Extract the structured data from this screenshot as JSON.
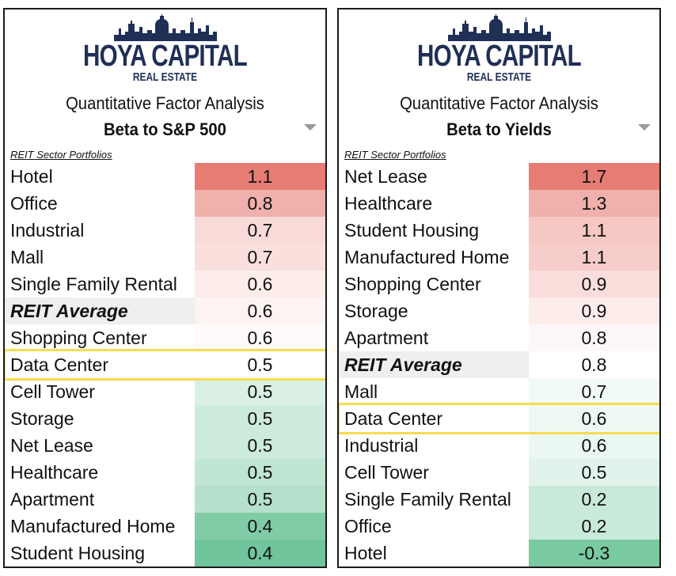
{
  "brand": {
    "name": "HOYA CAPITAL",
    "sub": "REAL ESTATE",
    "color": "#1f2f56",
    "icon": "city-skyline-icon"
  },
  "colors": {
    "high": "#e67c73",
    "mid": "#ffffff",
    "low": "#57bb8a",
    "highlight_border": "#f7dc4e",
    "average_label_bg": "#efefef"
  },
  "chart_data": [
    {
      "type": "table",
      "subtitle": "Quantitative Factor Analysis",
      "title": "Beta to S&P 500",
      "section_label": "REIT Sector Portfolios",
      "highlighted": "Data Center",
      "rows": [
        {
          "label": "Hotel",
          "value": "1.1"
        },
        {
          "label": "Office",
          "value": "0.8"
        },
        {
          "label": "Industrial",
          "value": "0.7"
        },
        {
          "label": "Mall",
          "value": "0.7"
        },
        {
          "label": "Single Family Rental",
          "value": "0.6"
        },
        {
          "label": "REIT Average",
          "value": "0.6",
          "average": true
        },
        {
          "label": "Shopping Center",
          "value": "0.6"
        },
        {
          "label": "Data Center",
          "value": "0.5"
        },
        {
          "label": "Cell Tower",
          "value": "0.5"
        },
        {
          "label": "Storage",
          "value": "0.5"
        },
        {
          "label": "Net Lease",
          "value": "0.5"
        },
        {
          "label": "Healthcare",
          "value": "0.5"
        },
        {
          "label": "Apartment",
          "value": "0.5"
        },
        {
          "label": "Manufactured Home",
          "value": "0.4"
        },
        {
          "label": "Student Housing",
          "value": "0.4"
        }
      ],
      "color_levels": [
        1.0,
        0.6,
        0.28,
        0.24,
        0.14,
        0.09,
        0.04,
        0.0,
        -0.22,
        -0.3,
        -0.3,
        -0.38,
        -0.44,
        -0.75,
        -0.85
      ]
    },
    {
      "type": "table",
      "subtitle": "Quantitative Factor Analysis",
      "title": "Beta to Yields",
      "section_label": "REIT Sector Portfolios",
      "highlighted": "Data Center",
      "rows": [
        {
          "label": "Net Lease",
          "value": "1.7"
        },
        {
          "label": "Healthcare",
          "value": "1.3"
        },
        {
          "label": "Student Housing",
          "value": "1.1"
        },
        {
          "label": "Manufactured Home",
          "value": "1.1"
        },
        {
          "label": "Shopping Center",
          "value": "0.9"
        },
        {
          "label": "Storage",
          "value": "0.9"
        },
        {
          "label": "Apartment",
          "value": "0.8"
        },
        {
          "label": "REIT Average",
          "value": "0.8",
          "average": true
        },
        {
          "label": "Mall",
          "value": "0.7"
        },
        {
          "label": "Data Center",
          "value": "0.6"
        },
        {
          "label": "Industrial",
          "value": "0.6"
        },
        {
          "label": "Cell Tower",
          "value": "0.5"
        },
        {
          "label": "Single Family Rental",
          "value": "0.2"
        },
        {
          "label": "Office",
          "value": "0.2"
        },
        {
          "label": "Hotel",
          "value": "-0.3"
        }
      ],
      "color_levels": [
        1.0,
        0.6,
        0.42,
        0.38,
        0.25,
        0.14,
        0.06,
        0.0,
        -0.08,
        -0.1,
        -0.12,
        -0.18,
        -0.32,
        -0.32,
        -0.8
      ]
    }
  ]
}
